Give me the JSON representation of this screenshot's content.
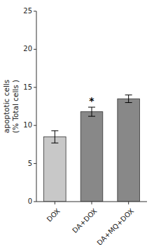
{
  "chart_data": {
    "type": "bar",
    "categories": [
      "DOX",
      "DA+DOX",
      "DA+MQ+DOX"
    ],
    "values": [
      8.5,
      11.8,
      13.5
    ],
    "errors": [
      0.8,
      0.6,
      0.5
    ],
    "colors": [
      "#c8c8c8",
      "#888888",
      "#888888"
    ],
    "ylabel": "apoptotic cells\n(% Total cells )",
    "ylim": [
      0,
      25
    ],
    "yticks": [
      0,
      5,
      10,
      15,
      20,
      25
    ],
    "annotations": [
      {
        "text": "*",
        "category": "DA+DOX"
      }
    ],
    "grid": false
  }
}
